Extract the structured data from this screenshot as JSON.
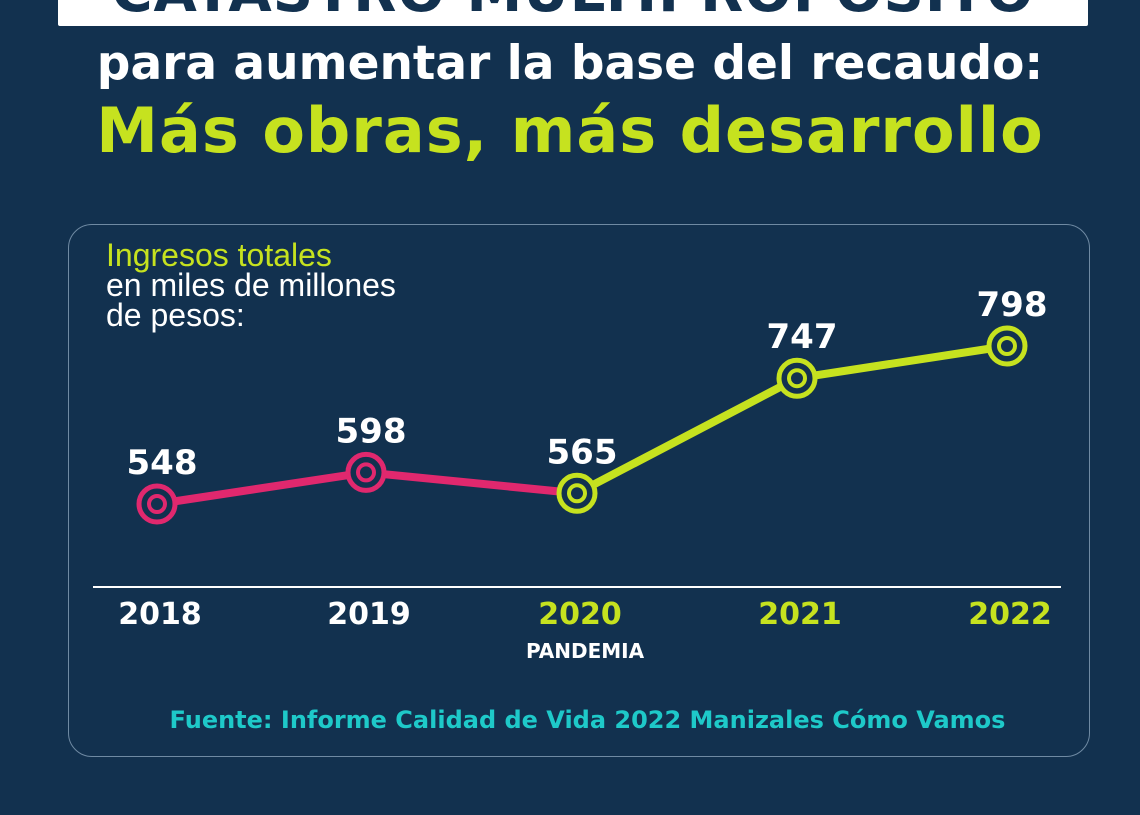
{
  "header": {
    "banner_title": "CATASTRO MULTIPROPÓSITO",
    "subtitle": "para aumentar la base del recaudo:",
    "headline": "Más obras, más desarrollo"
  },
  "colors": {
    "background": "#12314f",
    "accent_green": "#c6e21f",
    "accent_pink": "#e0286e",
    "source_cyan": "#1ec9c9"
  },
  "chart_data": {
    "type": "line",
    "title_line1": "Ingresos totales",
    "title_line2": "en miles de millones",
    "title_line3": "de pesos:",
    "categories": [
      "2018",
      "2019",
      "2020",
      "2021",
      "2022"
    ],
    "category_colors": [
      "#ffffff",
      "#ffffff",
      "#c6e21f",
      "#c6e21f",
      "#c6e21f"
    ],
    "series": [
      {
        "values": [
          548,
          598,
          565,
          747,
          798
        ],
        "segment_colors": [
          "#e0286e",
          "#e0286e",
          "#c6e21f",
          "#c6e21f"
        ],
        "marker_colors": [
          "#e0286e",
          "#e0286e",
          "#c6e21f",
          "#c6e21f",
          "#c6e21f"
        ]
      }
    ],
    "annotations": [
      {
        "category": "2020",
        "text": "PANDEMIA"
      }
    ],
    "grid": false,
    "legend": "none"
  },
  "footer": {
    "source": "Fuente: Informe Calidad de Vida 2022 Manizales Cómo Vamos"
  }
}
